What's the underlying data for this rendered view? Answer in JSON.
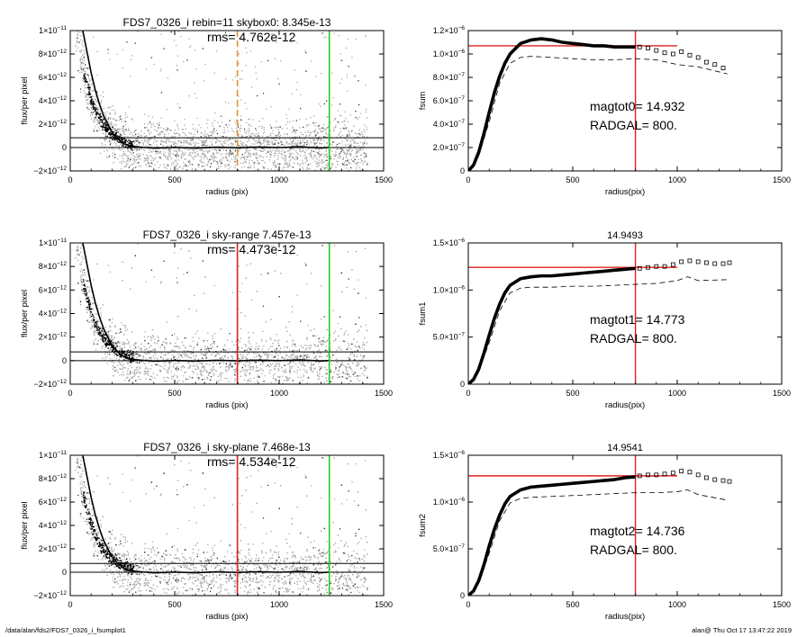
{
  "footer": {
    "path": "/data/alan/fds2/FDS7_0326_i_fsumplot1",
    "stamp": "alan@  Thu Oct 17 13:47:22 2019"
  },
  "chart_data": [
    {
      "type": "scatter",
      "title": "FDS7_0326_i rebin=11    skybox0:  8.345e-13",
      "rms_text": "rms= 4.762e-12",
      "xlabel": "radius (pix)",
      "ylabel": "flux/per pixel",
      "xlim": [
        0,
        1500
      ],
      "ylim": [
        -2e-12,
        1e-11
      ],
      "xticks": [
        0,
        500,
        1000,
        1500
      ],
      "xtick_labels": [
        "0",
        "500",
        "1000",
        "1500"
      ],
      "yticks": [
        -2e-12,
        0,
        2e-12,
        4e-12,
        6e-12,
        8e-12,
        1e-11
      ],
      "ytick_labels": [
        {
          "base": "−2×10",
          "exp": "−12"
        },
        {
          "base": "0",
          "exp": ""
        },
        {
          "base": "2×10",
          "exp": "−12"
        },
        {
          "base": "4×10",
          "exp": "−12"
        },
        {
          "base": "6×10",
          "exp": "−12"
        },
        {
          "base": "8×10",
          "exp": "−12"
        },
        {
          "base": "1×10",
          "exp": "−11"
        }
      ],
      "hlines": [
        8.345e-13,
        0
      ],
      "vline_marker": {
        "x": 800,
        "style": "dashed",
        "color": "#e8922a"
      },
      "vline_edge": {
        "x": 1240,
        "color": "#22cc22"
      },
      "profile": {
        "x": [
          60,
          80,
          100,
          120,
          140,
          160,
          180,
          200,
          230,
          260,
          300,
          350,
          400,
          500,
          600,
          700,
          800,
          900,
          1000,
          1100,
          1200,
          1240
        ],
        "y": [
          1e-11,
          8.2e-12,
          6.4e-12,
          4.9e-12,
          3.7e-12,
          2.7e-12,
          2e-12,
          1.3e-12,
          7e-13,
          3e-13,
          1e-13,
          2e-14,
          -5e-14,
          1e-14,
          -4e-14,
          3e-14,
          -2e-14,
          4e-14,
          0,
          6e-14,
          -3e-14,
          1e-14
        ]
      }
    },
    {
      "type": "line",
      "title": "",
      "xlabel": "radius(pix)",
      "ylabel": "fsum",
      "xlim": [
        0,
        1500
      ],
      "ylim": [
        0,
        1.2e-06
      ],
      "xticks": [
        0,
        500,
        1000,
        1500
      ],
      "xtick_labels": [
        "0",
        "500",
        "1000",
        "1500"
      ],
      "yticks": [
        0,
        2e-07,
        4e-07,
        6e-07,
        8e-07,
        1e-06,
        1.2e-06
      ],
      "ytick_labels": [
        {
          "base": "0",
          "exp": ""
        },
        {
          "base": "2.0×10",
          "exp": "−7"
        },
        {
          "base": "4.0×10",
          "exp": "−7"
        },
        {
          "base": "6.0×10",
          "exp": "−7"
        },
        {
          "base": "8.0×10",
          "exp": "−7"
        },
        {
          "base": "1.0×10",
          "exp": "−6"
        },
        {
          "base": "1.2×10",
          "exp": "−6"
        }
      ],
      "annotations": [
        "magtot0=  14.932",
        "RADGAL=    800."
      ],
      "hline": {
        "y": 1.07e-06,
        "x_to": 1000
      },
      "vline": {
        "x": 800
      },
      "curve": {
        "x": [
          0,
          25,
          50,
          75,
          100,
          125,
          150,
          175,
          200,
          250,
          300,
          350,
          400,
          450,
          500,
          550,
          600,
          650,
          700,
          750,
          800
        ],
        "y": [
          0,
          5e-08,
          1.6e-07,
          3.2e-07,
          5e-07,
          6.7e-07,
          8.1e-07,
          9.2e-07,
          1e-06,
          1.09e-06,
          1.12e-06,
          1.13e-06,
          1.12e-06,
          1.1e-06,
          1.09e-06,
          1.08e-06,
          1.07e-06,
          1.07e-06,
          1.06e-06,
          1.06e-06,
          1.06e-06
        ]
      },
      "squares": {
        "x": [
          820,
          860,
          900,
          940,
          980,
          1020,
          1060,
          1100,
          1140,
          1180,
          1220
        ],
        "y": [
          1.06e-06,
          1.05e-06,
          1.03e-06,
          1.01e-06,
          1e-06,
          1.02e-06,
          9.9e-07,
          9.7e-07,
          9.3e-07,
          9.1e-07,
          8.8e-07
        ]
      },
      "dashed": {
        "x": [
          0,
          50,
          100,
          150,
          200,
          250,
          300,
          400,
          500,
          600,
          700,
          800,
          900,
          1000,
          1100,
          1240
        ],
        "y": [
          0,
          1.3e-07,
          4.2e-07,
          7.5e-07,
          9.2e-07,
          9.7e-07,
          9.8e-07,
          9.7e-07,
          9.6e-07,
          9.5e-07,
          9.5e-07,
          9.6e-07,
          9.5e-07,
          9.1e-07,
          8.9e-07,
          8.3e-07
        ]
      }
    },
    {
      "type": "scatter",
      "title": "FDS7_0326_i sky-range  7.457e-13",
      "rms_text": "rms= 4.473e-12",
      "xlabel": "radius (pix)",
      "ylabel": "flux/per pixel",
      "xlim": [
        0,
        1500
      ],
      "ylim": [
        -2e-12,
        1e-11
      ],
      "xticks": [
        0,
        500,
        1000,
        1500
      ],
      "xtick_labels": [
        "0",
        "500",
        "1000",
        "1500"
      ],
      "yticks": [
        -2e-12,
        0,
        2e-12,
        4e-12,
        6e-12,
        8e-12,
        1e-11
      ],
      "ytick_labels": [
        {
          "base": "−2×10",
          "exp": "−12"
        },
        {
          "base": "0",
          "exp": ""
        },
        {
          "base": "2×10",
          "exp": "−12"
        },
        {
          "base": "4×10",
          "exp": "−12"
        },
        {
          "base": "6×10",
          "exp": "−12"
        },
        {
          "base": "8×10",
          "exp": "−12"
        },
        {
          "base": "1×10",
          "exp": "−11"
        }
      ],
      "hlines": [
        7.457e-13,
        0
      ],
      "vline_marker": {
        "x": 800,
        "style": "solid",
        "color": "#e02020"
      },
      "vline_edge": {
        "x": 1240,
        "color": "#22cc22"
      },
      "profile": {
        "x": [
          60,
          80,
          100,
          120,
          140,
          160,
          180,
          200,
          230,
          260,
          300,
          350,
          400,
          500,
          600,
          700,
          800,
          900,
          1000,
          1100,
          1200,
          1240
        ],
        "y": [
          1e-11,
          8.2e-12,
          6.4e-12,
          4.9e-12,
          3.7e-12,
          2.7e-12,
          2e-12,
          1.3e-12,
          7e-13,
          3e-13,
          1e-13,
          2e-14,
          -5e-14,
          1e-14,
          -4e-14,
          3e-14,
          -2e-14,
          4e-14,
          0,
          6e-14,
          -3e-14,
          1e-14
        ]
      }
    },
    {
      "type": "line",
      "title": "14.9493",
      "xlabel": "radius(pix)",
      "ylabel": "fsum1",
      "xlim": [
        0,
        1500
      ],
      "ylim": [
        0,
        1.5e-06
      ],
      "xticks": [
        0,
        500,
        1000,
        1500
      ],
      "xtick_labels": [
        "0",
        "500",
        "1000",
        "1500"
      ],
      "yticks": [
        0,
        5e-07,
        1e-06,
        1.5e-06
      ],
      "ytick_labels": [
        {
          "base": "0",
          "exp": ""
        },
        {
          "base": "5.0×10",
          "exp": "−7"
        },
        {
          "base": "1.0×10",
          "exp": "−6"
        },
        {
          "base": "1.5×10",
          "exp": "−6"
        }
      ],
      "annotations": [
        "magtot1=  14.773",
        "RADGAL=    800."
      ],
      "hline": {
        "y": 1.24e-06,
        "x_to": 1000
      },
      "vline": {
        "x": 800
      },
      "curve": {
        "x": [
          0,
          25,
          50,
          75,
          100,
          125,
          150,
          175,
          200,
          250,
          300,
          350,
          400,
          450,
          500,
          550,
          600,
          650,
          700,
          750,
          800
        ],
        "y": [
          0,
          5e-08,
          1.6e-07,
          3.3e-07,
          5.2e-07,
          7e-07,
          8.5e-07,
          9.7e-07,
          1.05e-06,
          1.12e-06,
          1.14e-06,
          1.15e-06,
          1.15e-06,
          1.16e-06,
          1.17e-06,
          1.18e-06,
          1.19e-06,
          1.2e-06,
          1.21e-06,
          1.22e-06,
          1.23e-06
        ]
      },
      "squares": {
        "x": [
          820,
          860,
          900,
          940,
          980,
          1020,
          1060,
          1100,
          1140,
          1180,
          1220,
          1250
        ],
        "y": [
          1.23e-06,
          1.24e-06,
          1.25e-06,
          1.25e-06,
          1.27e-06,
          1.3e-06,
          1.31e-06,
          1.3e-06,
          1.29e-06,
          1.28e-06,
          1.28e-06,
          1.29e-06
        ]
      },
      "dashed": {
        "x": [
          0,
          50,
          100,
          150,
          200,
          250,
          300,
          400,
          500,
          600,
          700,
          800,
          900,
          1000,
          1050,
          1100,
          1240
        ],
        "y": [
          0,
          1.4e-07,
          4.4e-07,
          7.8e-07,
          9.7e-07,
          1.02e-06,
          1.03e-06,
          1.03e-06,
          1.04e-06,
          1.04e-06,
          1.05e-06,
          1.06e-06,
          1.07e-06,
          1.1e-06,
          1.14e-06,
          1.1e-06,
          1.11e-06
        ]
      }
    },
    {
      "type": "scatter",
      "title": "FDS7_0326_i sky-plane  7.468e-13",
      "rms_text": "rms= 4.534e-12",
      "xlabel": "radius (pix)",
      "ylabel": "flux/per pixel",
      "xlim": [
        0,
        1500
      ],
      "ylim": [
        -2e-12,
        1e-11
      ],
      "xticks": [
        0,
        500,
        1000,
        1500
      ],
      "xtick_labels": [
        "0",
        "500",
        "1000",
        "1500"
      ],
      "yticks": [
        -2e-12,
        0,
        2e-12,
        4e-12,
        6e-12,
        8e-12,
        1e-11
      ],
      "ytick_labels": [
        {
          "base": "−2×10",
          "exp": "−12"
        },
        {
          "base": "0",
          "exp": ""
        },
        {
          "base": "2×10",
          "exp": "−12"
        },
        {
          "base": "4×10",
          "exp": "−12"
        },
        {
          "base": "6×10",
          "exp": "−12"
        },
        {
          "base": "8×10",
          "exp": "−12"
        },
        {
          "base": "1×10",
          "exp": "−11"
        }
      ],
      "hlines": [
        7.468e-13,
        0
      ],
      "vline_marker": {
        "x": 800,
        "style": "solid",
        "color": "#e02020"
      },
      "vline_edge": {
        "x": 1240,
        "color": "#22cc22"
      },
      "profile": {
        "x": [
          60,
          80,
          100,
          120,
          140,
          160,
          180,
          200,
          230,
          260,
          300,
          350,
          400,
          500,
          600,
          700,
          800,
          900,
          1000,
          1100,
          1200,
          1240
        ],
        "y": [
          1e-11,
          8.2e-12,
          6.4e-12,
          4.9e-12,
          3.7e-12,
          2.7e-12,
          2e-12,
          1.3e-12,
          7e-13,
          3e-13,
          1e-13,
          2e-14,
          -5e-14,
          1e-14,
          -4e-14,
          3e-14,
          -2e-14,
          4e-14,
          0,
          6e-14,
          -3e-14,
          1e-14
        ]
      }
    },
    {
      "type": "line",
      "title": "14.9541",
      "xlabel": "radius(pix)",
      "ylabel": "fsum2",
      "xlim": [
        0,
        1500
      ],
      "ylim": [
        0,
        1.5e-06
      ],
      "xticks": [
        0,
        500,
        1000,
        1500
      ],
      "xtick_labels": [
        "0",
        "500",
        "1000",
        "1500"
      ],
      "yticks": [
        0,
        5e-07,
        1e-06,
        1.5e-06
      ],
      "ytick_labels": [
        {
          "base": "0",
          "exp": ""
        },
        {
          "base": "5.0×10",
          "exp": "−7"
        },
        {
          "base": "1.0×10",
          "exp": "−6"
        },
        {
          "base": "1.5×10",
          "exp": "−6"
        }
      ],
      "annotations": [
        "magtot2=  14.736",
        "RADGAL=    800."
      ],
      "hline": {
        "y": 1.28e-06,
        "x_to": 1000
      },
      "vline": {
        "x": 800
      },
      "curve": {
        "x": [
          0,
          25,
          50,
          75,
          100,
          125,
          150,
          175,
          200,
          250,
          300,
          350,
          400,
          450,
          500,
          550,
          600,
          650,
          700,
          750,
          800
        ],
        "y": [
          0,
          5e-08,
          1.6e-07,
          3.3e-07,
          5.3e-07,
          7.1e-07,
          8.6e-07,
          9.8e-07,
          1.06e-06,
          1.13e-06,
          1.16e-06,
          1.17e-06,
          1.18e-06,
          1.19e-06,
          1.2e-06,
          1.21e-06,
          1.22e-06,
          1.23e-06,
          1.24e-06,
          1.26e-06,
          1.27e-06
        ]
      },
      "squares": {
        "x": [
          820,
          860,
          900,
          940,
          980,
          1020,
          1060,
          1100,
          1140,
          1180,
          1220,
          1250
        ],
        "y": [
          1.28e-06,
          1.29e-06,
          1.29e-06,
          1.3e-06,
          1.31e-06,
          1.33e-06,
          1.32e-06,
          1.29e-06,
          1.26e-06,
          1.24e-06,
          1.23e-06,
          1.22e-06
        ]
      },
      "dashed": {
        "x": [
          0,
          50,
          100,
          150,
          200,
          250,
          300,
          400,
          500,
          600,
          700,
          800,
          900,
          1000,
          1050,
          1100,
          1240
        ],
        "y": [
          0,
          1.4e-07,
          4.5e-07,
          8e-07,
          9.9e-07,
          1.04e-06,
          1.05e-06,
          1.06e-06,
          1.07e-06,
          1.08e-06,
          1.09e-06,
          1.1e-06,
          1.1e-06,
          1.11e-06,
          1.13e-06,
          1.08e-06,
          1.02e-06
        ]
      }
    }
  ]
}
